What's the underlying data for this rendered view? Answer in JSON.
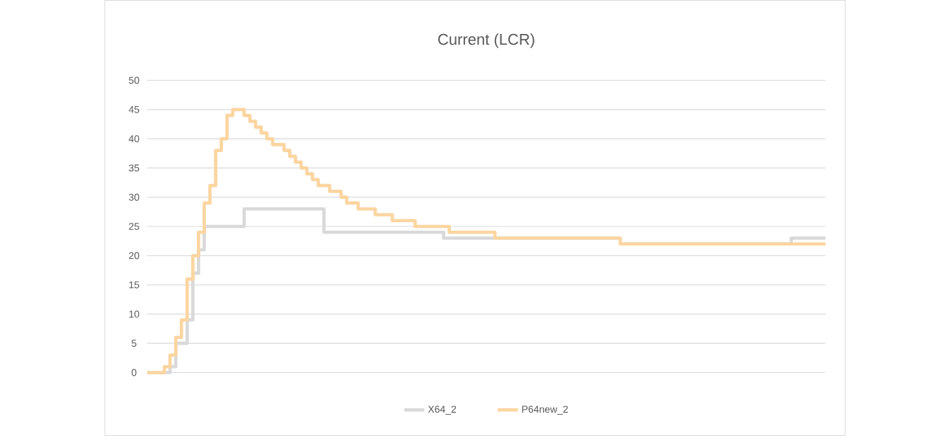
{
  "chart_data": {
    "type": "step",
    "title": "Current (LCR)",
    "categories": [
      null,
      null,
      null,
      null,
      null,
      null,
      null,
      null,
      null,
      null,
      null,
      null,
      null,
      null,
      null,
      null,
      null,
      null,
      null,
      null,
      null,
      null,
      null,
      null,
      null,
      null,
      null,
      null,
      null,
      null,
      null,
      null,
      null,
      null,
      null,
      null,
      null,
      null,
      null,
      null,
      null,
      null,
      null,
      null,
      null,
      null,
      null,
      null,
      null,
      null,
      null,
      null,
      null,
      null,
      null,
      null,
      null,
      null,
      null,
      null,
      null,
      null,
      null,
      null,
      null,
      null,
      null,
      null,
      null,
      null,
      null,
      null,
      null,
      null,
      null,
      null,
      null,
      null,
      null,
      null,
      null,
      null,
      null,
      null,
      null,
      null,
      null,
      null,
      null,
      null,
      null,
      null,
      null,
      null,
      null,
      null,
      null,
      null,
      null,
      null,
      null,
      null,
      null,
      null,
      null,
      null,
      null,
      null,
      null,
      null,
      null,
      null,
      null,
      null,
      null,
      null,
      null,
      null,
      null,
      null
    ],
    "series": [
      {
        "name": "X64_2",
        "color": "#d9d9d9",
        "values": [
          0,
          0,
          0,
          0,
          1,
          5,
          5,
          9,
          17,
          21,
          25,
          25,
          25,
          25,
          25,
          25,
          25,
          28,
          28,
          28,
          28,
          28,
          28,
          28,
          28,
          28,
          28,
          28,
          28,
          28,
          28,
          24,
          24,
          24,
          24,
          24,
          24,
          24,
          24,
          24,
          24,
          24,
          24,
          24,
          24,
          24,
          24,
          24,
          24,
          24,
          24,
          24,
          23,
          23,
          23,
          23,
          23,
          23,
          23,
          23,
          23,
          23,
          23,
          23,
          23,
          23,
          23,
          23,
          23,
          23,
          23,
          23,
          23,
          23,
          23,
          23,
          23,
          23,
          23,
          23,
          23,
          23,
          23,
          22,
          22,
          22,
          22,
          22,
          22,
          22,
          22,
          22,
          22,
          22,
          22,
          22,
          22,
          22,
          22,
          22,
          22,
          22,
          22,
          22,
          22,
          22,
          22,
          22,
          22,
          22,
          22,
          22,
          22,
          23,
          23,
          23,
          23,
          23,
          23,
          23
        ]
      },
      {
        "name": "P64new_2",
        "color": "#fcd5a0",
        "values": [
          0,
          0,
          0,
          1,
          3,
          6,
          9,
          16,
          20,
          24,
          29,
          32,
          38,
          40,
          44,
          45,
          45,
          44,
          43,
          42,
          41,
          40,
          39,
          39,
          38,
          37,
          36,
          35,
          34,
          33,
          32,
          32,
          31,
          31,
          30,
          29,
          29,
          28,
          28,
          28,
          27,
          27,
          27,
          26,
          26,
          26,
          26,
          25,
          25,
          25,
          25,
          25,
          25,
          24,
          24,
          24,
          24,
          24,
          24,
          24,
          24,
          23,
          23,
          23,
          23,
          23,
          23,
          23,
          23,
          23,
          23,
          23,
          23,
          23,
          23,
          23,
          23,
          23,
          23,
          23,
          23,
          23,
          23,
          22,
          22,
          22,
          22,
          22,
          22,
          22,
          22,
          22,
          22,
          22,
          22,
          22,
          22,
          22,
          22,
          22,
          22,
          22,
          22,
          22,
          22,
          22,
          22,
          22,
          22,
          22,
          22,
          22,
          22,
          22,
          22,
          22,
          22,
          22,
          22,
          22
        ]
      }
    ],
    "ylim": [
      0,
      50
    ],
    "yticks": [
      0,
      5,
      10,
      15,
      20,
      25,
      30,
      35,
      40,
      45,
      50
    ],
    "grid": "y",
    "legend": "bottom"
  }
}
